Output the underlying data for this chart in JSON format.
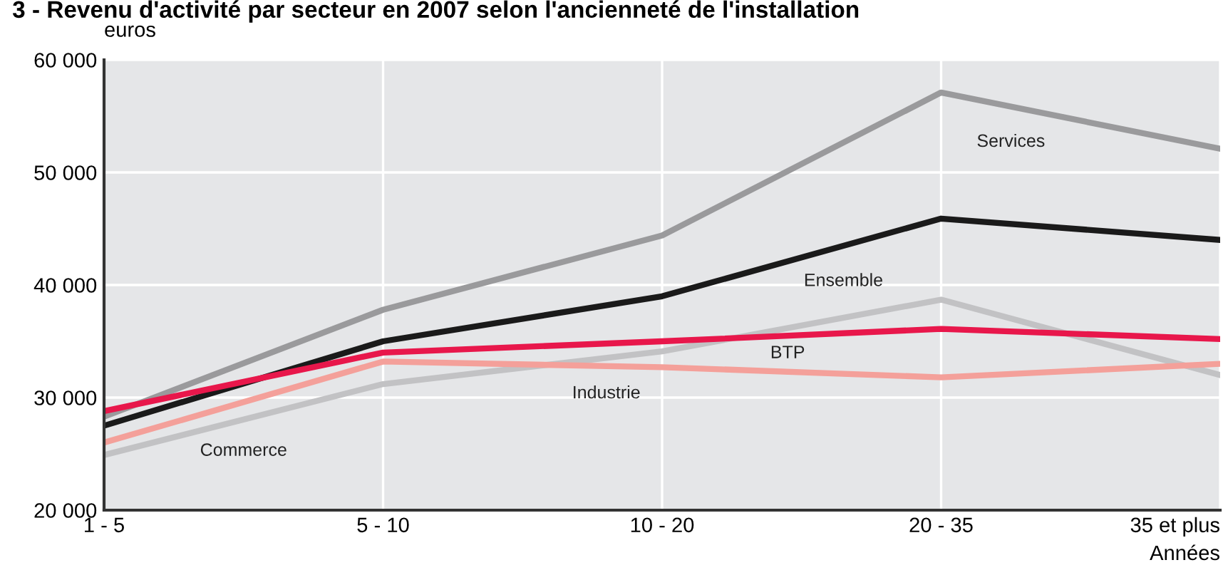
{
  "chart_data": {
    "type": "line",
    "title": "3 - Revenu d'activité par secteur en 2007 selon l'ancienneté de l'installation",
    "ylabel": "euros",
    "xlabel": "Années",
    "categories": [
      "1 - 5",
      "5 - 10",
      "10 - 20",
      "20 - 35",
      "35 et plus"
    ],
    "series": [
      {
        "name": "Services",
        "color": "#9a9a9c",
        "values": [
          28300,
          37800,
          44400,
          57100,
          52100
        ]
      },
      {
        "name": "Ensemble",
        "color": "#1a1a1a",
        "values": [
          27500,
          35000,
          39000,
          45900,
          44000
        ]
      },
      {
        "name": "Commerce",
        "color": "#c2c2c4",
        "values": [
          24900,
          31200,
          34100,
          38700,
          32000
        ]
      },
      {
        "name": "BTP",
        "color": "#e8174b",
        "values": [
          28800,
          34000,
          35000,
          36100,
          35200
        ]
      },
      {
        "name": "Industrie",
        "color": "#f4a09a",
        "values": [
          26000,
          33200,
          32700,
          31800,
          33000
        ]
      }
    ],
    "ylim": [
      20000,
      60000
    ],
    "yticks": [
      {
        "value": 20000,
        "label": "20 000"
      },
      {
        "value": 30000,
        "label": "30 000"
      },
      {
        "value": 40000,
        "label": "40 000"
      },
      {
        "value": 50000,
        "label": "50 000"
      },
      {
        "value": 60000,
        "label": "60 000"
      }
    ],
    "grid": true,
    "legend": false,
    "marker": "none",
    "line_style": "solid"
  }
}
